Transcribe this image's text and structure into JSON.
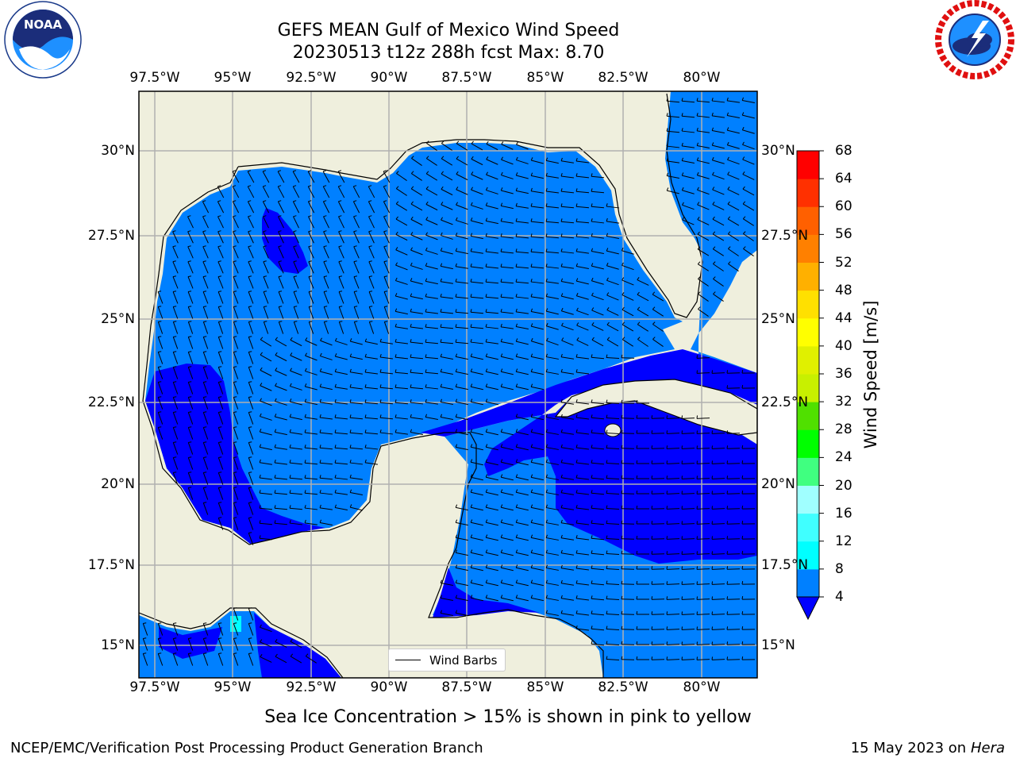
{
  "title": {
    "line1": "GEFS MEAN Gulf of Mexico Wind Speed",
    "line2": "20230513 t12z 288h fcst   Max: 8.70"
  },
  "logos": {
    "left": {
      "name": "NOAA",
      "ring_text": "NATIONAL OCEANIC AND ATMOSPHERIC ADMINISTRATION · U.S. DEPARTMENT OF COMMERCE"
    },
    "right": {
      "name": "NATIONAL WEATHER SERVICE"
    }
  },
  "map": {
    "lon_ticks": [
      "97.5°W",
      "95°W",
      "92.5°W",
      "90°W",
      "87.5°W",
      "85°W",
      "82.5°W",
      "80°W"
    ],
    "lat_ticks": [
      "30°N",
      "27.5°N",
      "25°N",
      "22.5°N",
      "20°N",
      "17.5°N",
      "15°N"
    ],
    "lon_range": [
      -98,
      -78.2
    ],
    "lat_range": [
      14,
      31.6
    ],
    "colors": {
      "land": "#efefdd",
      "wind_4_8": "#0080ff",
      "wind_below_4": "#0000ff",
      "wind_8_12": "#00ffff",
      "grid": "#b0b0b0"
    },
    "legend_label": "Wind Barbs"
  },
  "colorbar": {
    "label": "Wind Speed [m/s]",
    "levels": [
      "4",
      "8",
      "12",
      "16",
      "20",
      "24",
      "28",
      "32",
      "36",
      "40",
      "44",
      "48",
      "52",
      "56",
      "60",
      "64",
      "68"
    ],
    "colors": [
      "#0080ff",
      "#00ffff",
      "#40ffff",
      "#a0ffff",
      "#40ff80",
      "#00ff00",
      "#50e000",
      "#c8f000",
      "#e0f000",
      "#ffff00",
      "#ffe000",
      "#ffb000",
      "#ff8000",
      "#ff6000",
      "#ff3000",
      "#ff0000"
    ],
    "under_color": "#0000ff"
  },
  "subtitle": "Sea Ice Concentration > 15% is shown in pink to yellow",
  "footer": {
    "left": "NCEP/EMC/Verification Post Processing Product Generation Branch",
    "right_date": "15 May 2023 on",
    "right_machine": "Hera"
  }
}
